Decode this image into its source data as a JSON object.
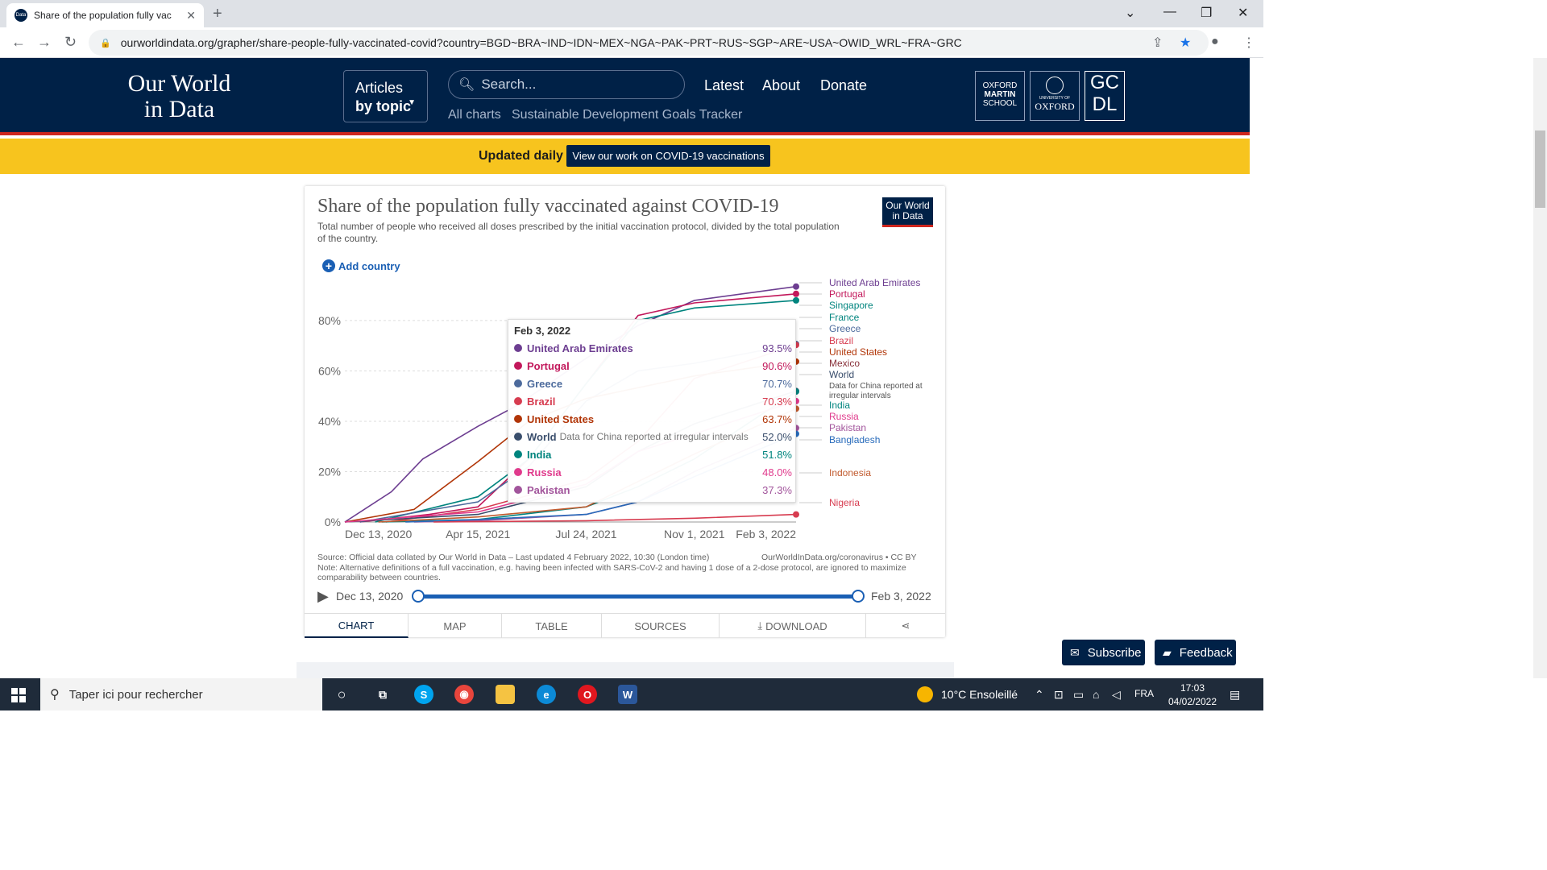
{
  "browser": {
    "tab_title": "Share of the population fully vac",
    "favicon_text": "Data",
    "url": "ourworldindata.org/grapher/share-people-fully-vaccinated-covid?country=BGD~BRA~IND~IDN~MEX~NGA~PAK~PRT~RUS~SGP~ARE~USA~OWID_WRL~FRA~GRC"
  },
  "header": {
    "logo_line1": "Our World",
    "logo_line2": "in Data",
    "articles_line1": "Articles",
    "articles_line2": "by topic",
    "search_placeholder": "Search...",
    "nav": [
      "Latest",
      "About",
      "Donate"
    ],
    "sub_nav": [
      "All charts",
      "Sustainable Development Goals Tracker"
    ],
    "partners": {
      "oxford_martin": [
        "OXFORD",
        "MARTIN",
        "SCHOOL"
      ],
      "oxford_univ_small": "UNIVERSITY OF",
      "oxford_univ": "OXFORD",
      "gcdl": [
        "GC",
        "DL"
      ]
    }
  },
  "banner": {
    "text": "Updated daily",
    "button": "View our work on COVID-19 vaccinations"
  },
  "chart_card": {
    "title": "Share of the population fully vaccinated against COVID-19",
    "subtitle": "Total number of people who received all doses prescribed by the initial vaccination protocol, divided by the total population of the country.",
    "logo_line1": "Our World",
    "logo_line2": "in Data",
    "add_country": "Add country",
    "source": "Source: Official data collated by Our World in Data – Last updated 4 February 2022, 10:30 (London time)",
    "note": "Note: Alternative definitions of a full vaccination, e.g. having been infected with SARS-CoV-2 and having 1 dose of a 2-dose protocol, are ignored to maximize comparability between countries.",
    "license": "OurWorldInData.org/coronavirus • CC BY",
    "timeline_start": "Dec 13, 2020",
    "timeline_end": "Feb 3, 2022",
    "tabs": [
      "CHART",
      "MAP",
      "TABLE",
      "SOURCES",
      "DOWNLOAD"
    ]
  },
  "tooltip": {
    "date": "Feb 3, 2022",
    "rows": [
      {
        "name": "United Arab Emirates",
        "note": "",
        "value": "93.5%",
        "color": "#6d3e91"
      },
      {
        "name": "Portugal",
        "note": "",
        "value": "90.6%",
        "color": "#c2185b"
      },
      {
        "name": "Greece",
        "note": "",
        "value": "70.7%",
        "color": "#4c6a9c"
      },
      {
        "name": "Brazil",
        "note": "",
        "value": "70.3%",
        "color": "#d73c50"
      },
      {
        "name": "United States",
        "note": "",
        "value": "63.7%",
        "color": "#b13507"
      },
      {
        "name": "World",
        "note": "Data for China reported at irregular intervals",
        "value": "52.0%",
        "color": "#3a4e6c"
      },
      {
        "name": "India",
        "note": "",
        "value": "51.8%",
        "color": "#00847e"
      },
      {
        "name": "Russia",
        "note": "",
        "value": "48.0%",
        "color": "#e03a8c"
      },
      {
        "name": "Pakistan",
        "note": "",
        "value": "37.3%",
        "color": "#a2559c"
      }
    ]
  },
  "chart_data": {
    "type": "line",
    "y_ticks": [
      "0%",
      "20%",
      "40%",
      "60%",
      "80%"
    ],
    "x_ticks": [
      "Dec 13, 2020",
      "Apr 15, 2021",
      "Jul 24, 2021",
      "Nov 1, 2021",
      "Feb 3, 2022"
    ],
    "ylim": [
      0,
      95
    ],
    "xlim": [
      "2020-12-13",
      "2022-02-03"
    ],
    "series": [
      {
        "name": "United Arab Emirates",
        "color": "#6d3e91",
        "points": [
          [
            "2020-12-13",
            0
          ],
          [
            "2021-01-25",
            12
          ],
          [
            "2021-02-23",
            25
          ],
          [
            "2021-04-15",
            38
          ],
          [
            "2021-05-20",
            46
          ],
          [
            "2021-07-24",
            65
          ],
          [
            "2021-09-10",
            78
          ],
          [
            "2021-11-01",
            88
          ],
          [
            "2022-02-03",
            93.5
          ]
        ]
      },
      {
        "name": "Portugal",
        "color": "#c2185b",
        "points": [
          [
            "2020-12-27",
            0
          ],
          [
            "2021-03-01",
            3
          ],
          [
            "2021-04-15",
            6
          ],
          [
            "2021-06-01",
            25
          ],
          [
            "2021-07-24",
            55
          ],
          [
            "2021-09-10",
            82
          ],
          [
            "2021-11-01",
            87
          ],
          [
            "2022-02-03",
            90.6
          ]
        ]
      },
      {
        "name": "Singapore",
        "color": "#00847e",
        "points": [
          [
            "2021-01-10",
            0
          ],
          [
            "2021-04-15",
            10
          ],
          [
            "2021-06-01",
            25
          ],
          [
            "2021-07-24",
            55
          ],
          [
            "2021-09-10",
            80
          ],
          [
            "2021-11-01",
            85
          ],
          [
            "2022-02-03",
            88
          ]
        ]
      },
      {
        "name": "Greece",
        "color": "#4c6a9c",
        "points": [
          [
            "2020-12-27",
            0
          ],
          [
            "2021-04-15",
            8
          ],
          [
            "2021-06-01",
            22
          ],
          [
            "2021-07-24",
            48
          ],
          [
            "2021-09-10",
            60
          ],
          [
            "2021-11-01",
            63
          ],
          [
            "2022-02-03",
            70.7
          ]
        ]
      },
      {
        "name": "Brazil",
        "color": "#d73c50",
        "points": [
          [
            "2021-01-20",
            0
          ],
          [
            "2021-04-15",
            5
          ],
          [
            "2021-07-24",
            17
          ],
          [
            "2021-09-10",
            32
          ],
          [
            "2021-11-01",
            57
          ],
          [
            "2022-02-03",
            70.3
          ]
        ]
      },
      {
        "name": "United States",
        "color": "#b13507",
        "points": [
          [
            "2020-12-13",
            0
          ],
          [
            "2021-02-15",
            5
          ],
          [
            "2021-04-15",
            24
          ],
          [
            "2021-06-01",
            40
          ],
          [
            "2021-07-24",
            49
          ],
          [
            "2021-11-01",
            58
          ],
          [
            "2022-02-03",
            63.7
          ]
        ]
      },
      {
        "name": "World",
        "color": "#3a4e6c",
        "points": [
          [
            "2020-12-13",
            0
          ],
          [
            "2021-04-15",
            3
          ],
          [
            "2021-07-24",
            14
          ],
          [
            "2021-09-10",
            28
          ],
          [
            "2021-11-01",
            39
          ],
          [
            "2022-02-03",
            52
          ]
        ]
      },
      {
        "name": "India",
        "color": "#00847e",
        "points": [
          [
            "2021-01-16",
            0
          ],
          [
            "2021-04-15",
            1
          ],
          [
            "2021-07-24",
            6
          ],
          [
            "2021-09-10",
            14
          ],
          [
            "2021-11-01",
            25
          ],
          [
            "2022-02-03",
            51.8
          ]
        ]
      },
      {
        "name": "Russia",
        "color": "#e03a8c",
        "points": [
          [
            "2020-12-13",
            0
          ],
          [
            "2021-04-15",
            4
          ],
          [
            "2021-07-24",
            15
          ],
          [
            "2021-09-10",
            28
          ],
          [
            "2021-11-01",
            35
          ],
          [
            "2022-02-03",
            48
          ]
        ]
      },
      {
        "name": "Pakistan",
        "color": "#a2559c",
        "points": [
          [
            "2021-02-15",
            0
          ],
          [
            "2021-04-15",
            0.5
          ],
          [
            "2021-07-24",
            3
          ],
          [
            "2021-09-10",
            8
          ],
          [
            "2021-11-01",
            20
          ],
          [
            "2022-02-03",
            37.3
          ]
        ]
      },
      {
        "name": "Indonesia",
        "color": "#c15b2f",
        "points": [
          [
            "2021-01-13",
            0
          ],
          [
            "2021-04-15",
            2
          ],
          [
            "2021-07-24",
            6
          ],
          [
            "2021-11-01",
            27
          ],
          [
            "2022-02-03",
            45
          ]
        ]
      },
      {
        "name": "Bangladesh",
        "color": "#286bbb",
        "points": [
          [
            "2021-02-07",
            0
          ],
          [
            "2021-04-15",
            1
          ],
          [
            "2021-07-24",
            3
          ],
          [
            "2021-09-10",
            8
          ],
          [
            "2021-11-01",
            18
          ],
          [
            "2022-02-03",
            35
          ]
        ]
      },
      {
        "name": "Nigeria",
        "color": "#d73c50",
        "points": [
          [
            "2021-03-05",
            0
          ],
          [
            "2021-07-24",
            0.5
          ],
          [
            "2021-11-01",
            1.5
          ],
          [
            "2022-02-03",
            3
          ]
        ]
      }
    ],
    "end_labels": [
      {
        "text": "United Arab Emirates",
        "color": "#6d3e91"
      },
      {
        "text": "Portugal",
        "color": "#c2185b"
      },
      {
        "text": "Singapore",
        "color": "#00847e"
      },
      {
        "text": "France",
        "color": "#00847e"
      },
      {
        "text": "Greece",
        "color": "#4c6a9c"
      },
      {
        "text": "Brazil",
        "color": "#d73c50"
      },
      {
        "text": "United States",
        "color": "#b13507"
      },
      {
        "text": "Mexico",
        "color": "#883039"
      },
      {
        "text": "World",
        "color": "#3a4e6c"
      },
      {
        "text": "Data for China reported at",
        "color": "#555555"
      },
      {
        "text": "irregular intervals",
        "color": "#555555"
      },
      {
        "text": "India",
        "color": "#00847e"
      },
      {
        "text": "Russia",
        "color": "#e03a8c"
      },
      {
        "text": "Pakistan",
        "color": "#a2559c"
      },
      {
        "text": "Bangladesh",
        "color": "#286bbb"
      },
      {
        "text": "Indonesia",
        "color": "#c15b2f"
      },
      {
        "text": "Nigeria",
        "color": "#d73c50"
      }
    ]
  },
  "floating": {
    "subscribe": "Subscribe",
    "feedback": "Feedback"
  },
  "taskbar": {
    "search_placeholder": "Taper ici pour rechercher",
    "weather": "10°C  Ensoleillé",
    "lang": "FRA",
    "time": "17:03",
    "date": "04/02/2022"
  }
}
